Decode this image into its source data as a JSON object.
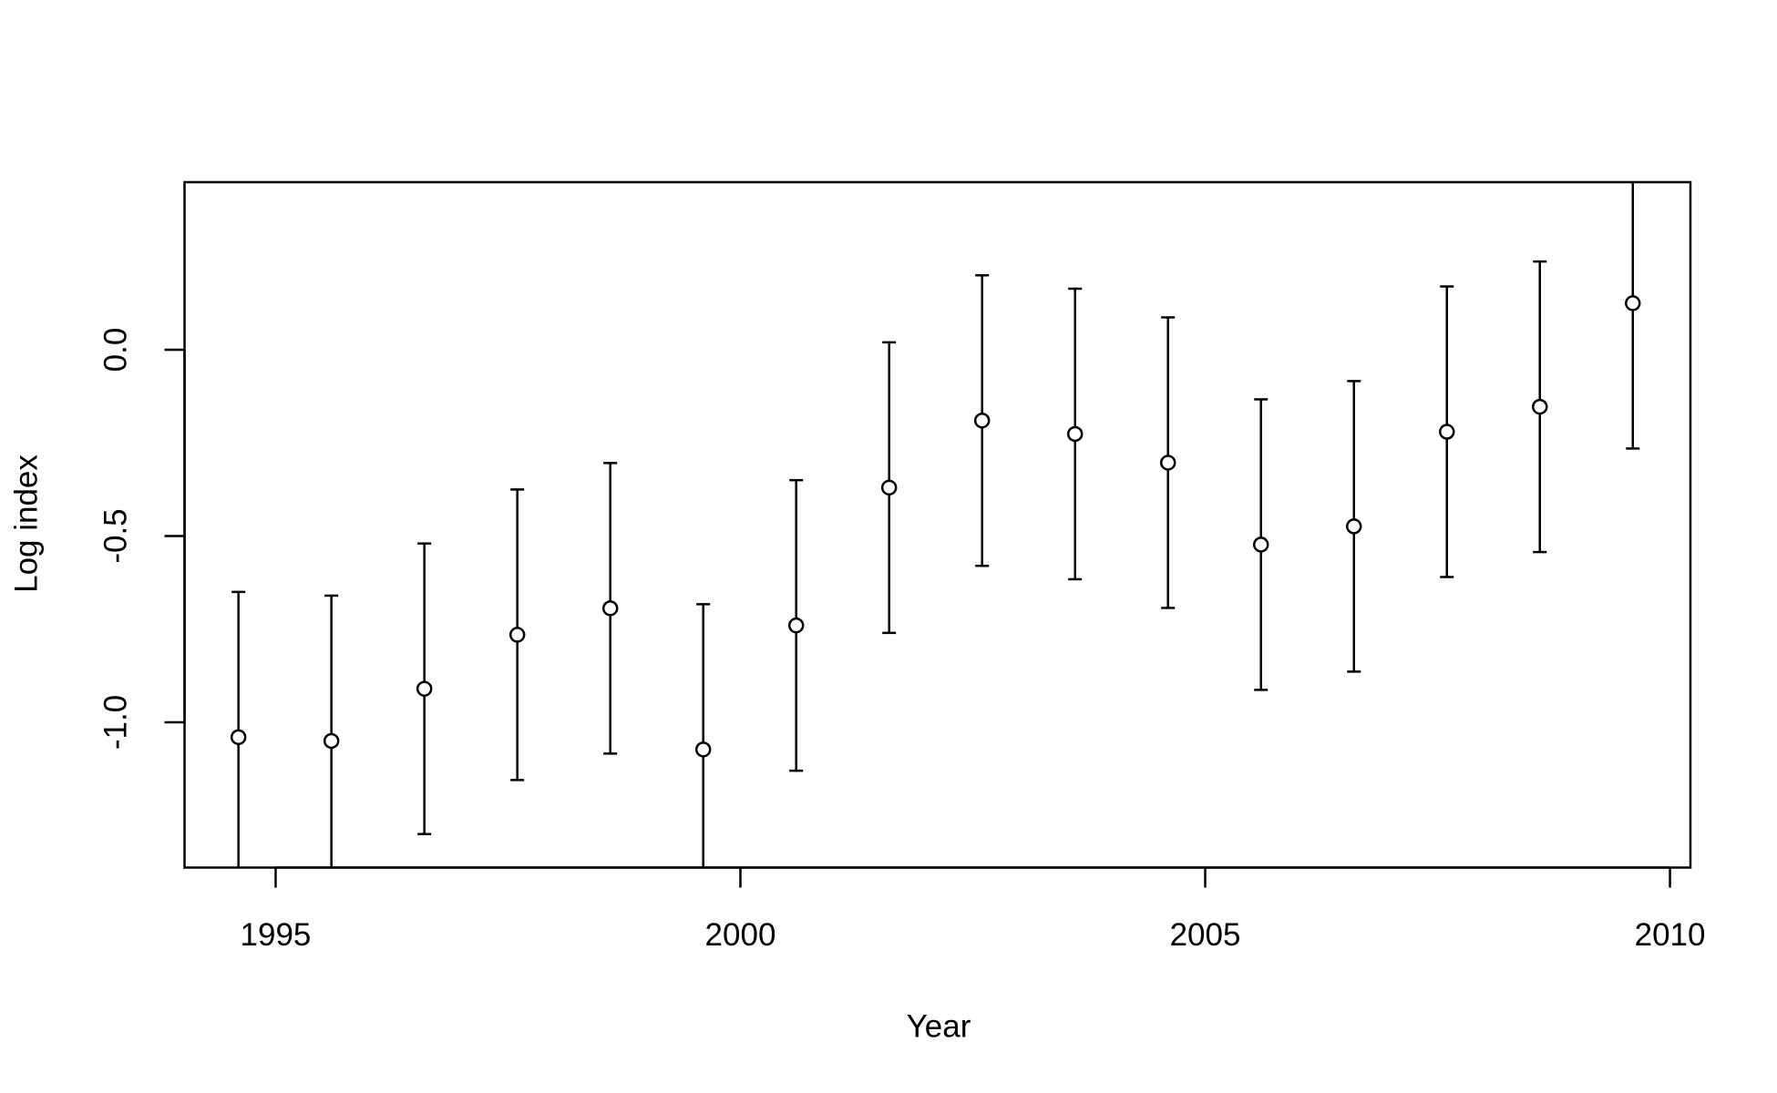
{
  "chart_data": {
    "type": "errorbar",
    "x_label": "Year",
    "y_label": "Log index",
    "x": [
      1994.6,
      1995.6,
      1996.6,
      1997.6,
      1998.6,
      1999.6,
      2000.6,
      2001.6,
      2002.6,
      2003.6,
      2004.6,
      2005.6,
      2006.6,
      2007.6,
      2008.6,
      2009.6
    ],
    "values": [
      -1.04,
      -1.05,
      -0.91,
      -0.765,
      -0.694,
      -1.073,
      -0.74,
      -0.37,
      -0.19,
      -0.226,
      -0.303,
      -0.523,
      -0.474,
      -0.22,
      -0.153,
      0.125
    ],
    "errors": [
      0.39,
      0.39,
      0.39,
      0.39,
      0.39,
      0.39,
      0.39,
      0.39,
      0.39,
      0.39,
      0.39,
      0.39,
      0.39,
      0.39,
      0.39,
      0.39
    ],
    "color": "#000000",
    "xlim": [
      1994.02,
      2010.22
    ],
    "xticks": [
      1995,
      2000,
      2005,
      2010
    ],
    "ylim": [
      -1.39,
      0.45
    ],
    "yticks": [
      {
        "value": -1.0,
        "label": "-1.0"
      },
      {
        "value": -0.5,
        "label": "-0.5"
      },
      {
        "value": 0,
        "label": "0.0"
      }
    ]
  }
}
